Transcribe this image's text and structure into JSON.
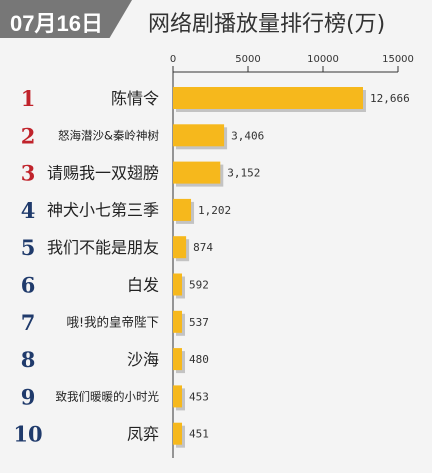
{
  "header": {
    "date": "07月16日",
    "title": "网络剧播放量排行榜(万)"
  },
  "colors": {
    "bar": "#f6b81c",
    "rank_red": "#c0232b",
    "rank_navy": "#1f3a6b",
    "header_bg": "#777777"
  },
  "chart_data": {
    "type": "bar",
    "orientation": "horizontal",
    "title": "网络剧播放量排行榜(万)",
    "xlim": [
      0,
      15000
    ],
    "x_ticks": [
      0,
      5000,
      10000,
      15000
    ],
    "x_tick_labels": [
      "0",
      "5000",
      "10000",
      "15000"
    ],
    "ranks": [
      "1",
      "2",
      "3",
      "4",
      "5",
      "6",
      "7",
      "8",
      "9",
      "10"
    ],
    "categories": [
      "陈情令",
      "怒海潜沙&秦岭神树",
      "请赐我一双翅膀",
      "神犬小七第三季",
      "我们不能是朋友",
      "白发",
      "哦!我的皇帝陛下",
      "沙海",
      "致我们暖暖的小时光",
      "凤弈"
    ],
    "values": [
      12666,
      3406,
      3152,
      1202,
      874,
      592,
      537,
      480,
      453,
      451
    ],
    "value_labels": [
      "12,666",
      "3,406",
      "3,152",
      "1,202",
      "874",
      "592",
      "537",
      "480",
      "453",
      "451"
    ]
  }
}
